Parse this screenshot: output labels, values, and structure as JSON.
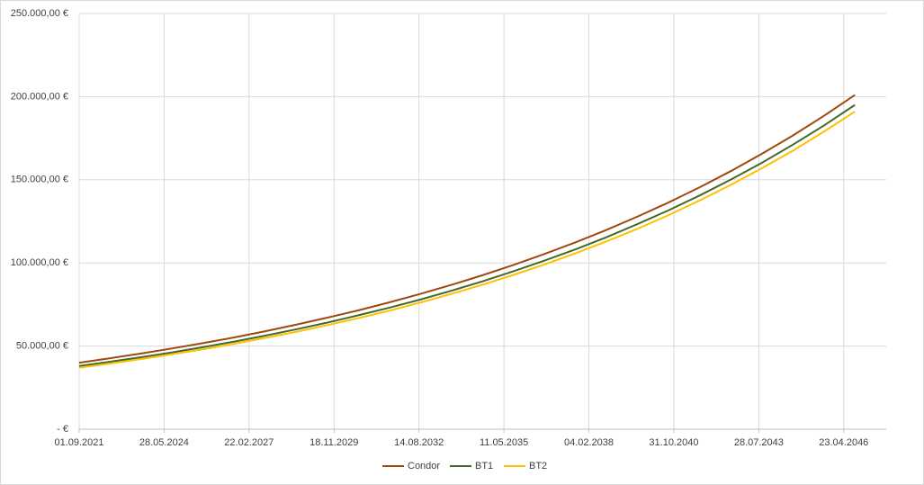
{
  "chart_data": {
    "type": "line",
    "x": [
      "01.09.2021",
      "01.09.2022",
      "01.09.2023",
      "01.09.2024",
      "01.09.2025",
      "01.09.2026",
      "01.09.2027",
      "01.09.2028",
      "01.09.2029",
      "01.09.2030",
      "01.09.2031",
      "01.09.2032",
      "01.09.2033",
      "01.09.2034",
      "01.09.2035",
      "01.09.2036",
      "01.09.2037",
      "01.09.2038",
      "01.09.2039",
      "01.09.2040",
      "01.09.2041",
      "01.09.2042",
      "01.09.2043",
      "01.09.2044",
      "01.09.2045",
      "01.09.2046"
    ],
    "series": [
      {
        "name": "Condor",
        "color": "#9e480e",
        "values": [
          40000,
          42700,
          45500,
          48600,
          51800,
          55200,
          58900,
          62900,
          67100,
          71500,
          76300,
          81400,
          86800,
          92600,
          98800,
          105400,
          112400,
          119900,
          127900,
          136400,
          145500,
          155200,
          165600,
          176600,
          188400,
          201000
        ]
      },
      {
        "name": "BT1",
        "color": "#43682b",
        "values": [
          38000,
          40600,
          43300,
          46200,
          49400,
          52700,
          56300,
          60100,
          64100,
          68500,
          73100,
          78000,
          83300,
          88900,
          95000,
          101400,
          108200,
          115500,
          123400,
          131700,
          140600,
          150100,
          160200,
          171100,
          182600,
          195000
        ]
      },
      {
        "name": "BT2",
        "color": "#ffc000",
        "values": [
          37000,
          39500,
          42200,
          45100,
          48100,
          51400,
          54900,
          58600,
          62600,
          66800,
          71300,
          76200,
          81400,
          86900,
          92800,
          99100,
          105800,
          113000,
          120600,
          128800,
          137600,
          146900,
          156900,
          167500,
          178900,
          191000
        ]
      }
    ],
    "xlim": [
      "01.09.2021",
      "05.09.2047"
    ],
    "xticks": [
      "01.09.2021",
      "28.05.2024",
      "22.02.2027",
      "18.11.2029",
      "14.08.2032",
      "11.05.2035",
      "04.02.2038",
      "31.10.2040",
      "28.07.2043",
      "23.04.2046"
    ],
    "ylim": [
      0,
      250000
    ],
    "yticks": [
      {
        "value": 0,
        "label": "-  €"
      },
      {
        "value": 50000,
        "label": "50.000,00 €"
      },
      {
        "value": 100000,
        "label": "100.000,00 €"
      },
      {
        "value": 150000,
        "label": "150.000,00 €"
      },
      {
        "value": 200000,
        "label": "200.000,00 €"
      },
      {
        "value": 250000,
        "label": "250.000,00 €"
      }
    ],
    "grid": true,
    "legend": "bottom"
  }
}
